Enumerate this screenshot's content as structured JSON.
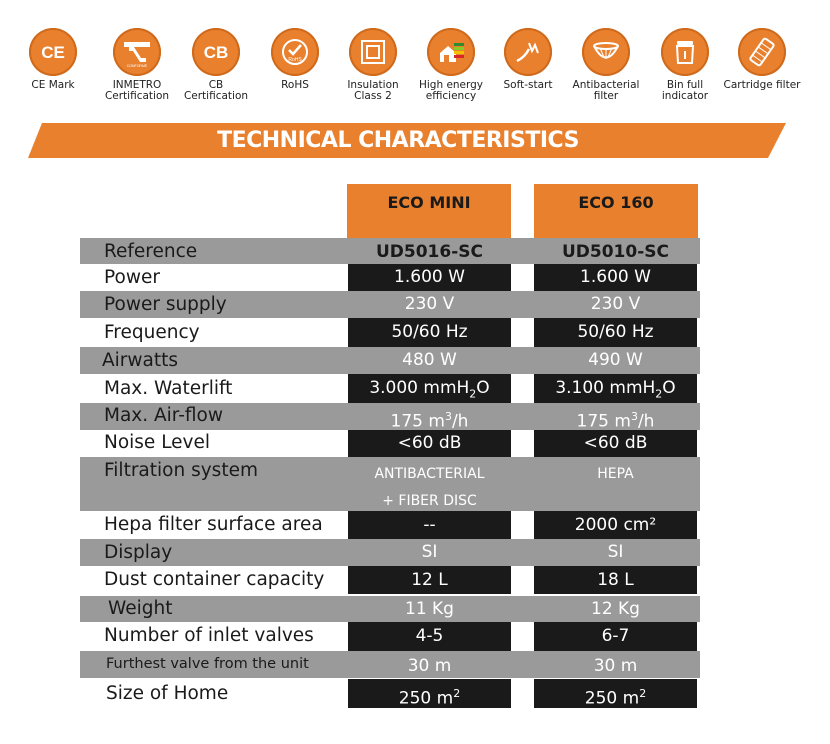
{
  "icons": [
    {
      "name": "ce-mark-icon",
      "label": "CE Mark"
    },
    {
      "name": "inmetro-icon",
      "label": "INMETRO Certification"
    },
    {
      "name": "cb-icon",
      "label": "CB Certification"
    },
    {
      "name": "rohs-icon",
      "label": "RoHS"
    },
    {
      "name": "insulation-class-2-icon",
      "label": "Insulation Class 2"
    },
    {
      "name": "energy-efficiency-icon",
      "label": "High energy efficiency"
    },
    {
      "name": "soft-start-icon",
      "label": "Soft-start"
    },
    {
      "name": "antibacterial-filter-icon",
      "label": "Antibacterial filter"
    },
    {
      "name": "bin-full-indicator-icon",
      "label": "Bin full indicator"
    },
    {
      "name": "cartridge-filter-icon",
      "label": "Cartridge filter"
    }
  ],
  "icon_glyphs": {
    "ce": "CE",
    "cb": "CB",
    "rohs": "RoHS",
    "inmetro": "CONFORME"
  },
  "title": "TECHNICAL CHARACTERISTICS",
  "products": [
    "ECO MINI",
    "ECO 160"
  ],
  "specs": [
    {
      "label": "Reference",
      "v1": "UD5016-SC",
      "v2": "UD5010-SC"
    },
    {
      "label": "Power",
      "v1": "1.600 W",
      "v2": "1.600 W"
    },
    {
      "label": "Power supply",
      "v1": "230 V",
      "v2": "230 V"
    },
    {
      "label": "Frequency",
      "v1": "50/60 Hz",
      "v2": "50/60 Hz"
    },
    {
      "label": "Airwatts",
      "v1": "480 W",
      "v2": "490 W"
    },
    {
      "label": "Max. Waterlift",
      "v1": "3.000 mmH",
      "v2": "3.100 mmH",
      "sub": "2",
      "after": "O"
    },
    {
      "label": "Max. Air-flow",
      "v1": "175 m",
      "v2": "175 m",
      "sup": "3",
      "after": "/h"
    },
    {
      "label": "Noise Level",
      "v1": "<60 dB",
      "v2": "<60 dB"
    },
    {
      "label": "Filtration system",
      "v1a": "ANTIBACTERIAL",
      "v1b": "+ FIBER DISC",
      "v2": "HEPA"
    },
    {
      "label": "Hepa filter surface area",
      "v1": "--",
      "v2": "2000 cm²"
    },
    {
      "label": "Display",
      "v1": "SI",
      "v2": "SI"
    },
    {
      "label": "Dust container capacity",
      "v1": "12 L",
      "v2": "18 L"
    },
    {
      "label": "Weight",
      "v1": "11 Kg",
      "v2": "12 Kg"
    },
    {
      "label": "Number of inlet valves",
      "v1": "4-5",
      "v2": "6-7"
    },
    {
      "label": "Furthest valve from the unit",
      "v1": "30 m",
      "v2": "30 m"
    },
    {
      "label": "Size of Home",
      "v1": "250 m",
      "v2": "250 m",
      "sup": "2"
    }
  ]
}
